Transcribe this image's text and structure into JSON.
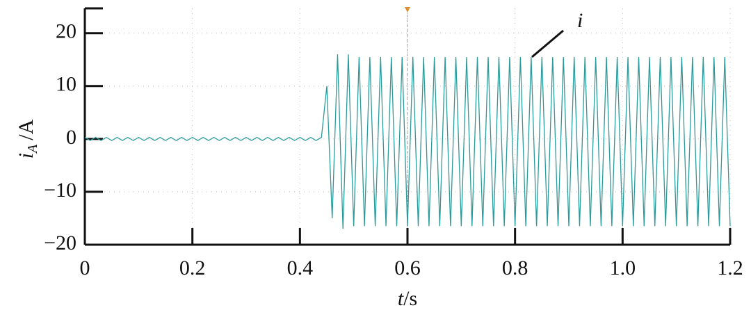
{
  "chart_data": {
    "type": "line",
    "ylabel_var": "i",
    "ylabel_sub": "A",
    "ylabel_unit": "/A",
    "xlabel_var": "t",
    "xlabel_unit": "/s",
    "annotation": "i",
    "xlim": [
      0,
      1.2
    ],
    "ylim": [
      -20,
      24.7
    ],
    "xticks": [
      0,
      0.2,
      0.4,
      0.6,
      0.8,
      {
        "value": 1,
        "label": "1.0"
      },
      1.2
    ],
    "yticks": [
      {
        "value": -20,
        "label": "−20"
      },
      {
        "value": -10,
        "label": "−10"
      },
      0,
      10,
      20
    ],
    "grid": true,
    "x": [
      0,
      0.01,
      0.02,
      0.03,
      0.04,
      0.05,
      0.06,
      0.07,
      0.08,
      0.09,
      0.1,
      0.11,
      0.12,
      0.13,
      0.14,
      0.15,
      0.16,
      0.17,
      0.18,
      0.19,
      0.2,
      0.21,
      0.22,
      0.23,
      0.24,
      0.25,
      0.26,
      0.27,
      0.28,
      0.29,
      0.3,
      0.31,
      0.32,
      0.33,
      0.34,
      0.35,
      0.36,
      0.37,
      0.38,
      0.39,
      0.4,
      0.41,
      0.42,
      0.43,
      0.44,
      0.45,
      0.46,
      0.47,
      0.48,
      0.49,
      0.5,
      0.51,
      0.52,
      0.53,
      0.54,
      0.55,
      0.56,
      0.57,
      0.58,
      0.59,
      0.6,
      0.61,
      0.62,
      0.63,
      0.64,
      0.65,
      0.66,
      0.67,
      0.68,
      0.69,
      0.7,
      0.71,
      0.72,
      0.73,
      0.74,
      0.75,
      0.76,
      0.77,
      0.78,
      0.79,
      0.8,
      0.81,
      0.82,
      0.83,
      0.84,
      0.85,
      0.86,
      0.87,
      0.88,
      0.89,
      0.9,
      0.91,
      0.92,
      0.93,
      0.94,
      0.95,
      0.96,
      0.97,
      0.98,
      0.99,
      1,
      1.01,
      1.02,
      1.03,
      1.04,
      1.05,
      1.06,
      1.07,
      1.08,
      1.09,
      1.1,
      1.11,
      1.12,
      1.13,
      1.14,
      1.15,
      1.16,
      1.17,
      1.18,
      1.19,
      1.2
    ],
    "series": [
      {
        "color": "#2a9a9a",
        "values": [
          0.3,
          -0.3,
          0.3,
          -0.3,
          0.3,
          -0.3,
          0.3,
          -0.3,
          0.3,
          -0.3,
          0.3,
          -0.3,
          0.3,
          -0.3,
          0.3,
          -0.3,
          0.3,
          -0.3,
          0.3,
          -0.3,
          0.3,
          -0.3,
          0.3,
          -0.3,
          0.3,
          -0.3,
          0.3,
          -0.3,
          0.3,
          -0.3,
          0.3,
          -0.3,
          0.3,
          -0.3,
          0.3,
          -0.3,
          0.3,
          -0.3,
          0.3,
          -0.3,
          0.3,
          -0.3,
          0.3,
          -0.3,
          0.3,
          10,
          -15,
          16,
          -17,
          16,
          -16.5,
          15.5,
          -16.5,
          15.5,
          -16.5,
          15.5,
          -16.5,
          15.5,
          -16.5,
          15.5,
          -16.5,
          15.5,
          -16.5,
          15.5,
          -16.5,
          15.5,
          -16.5,
          15.5,
          -16.5,
          15.5,
          -16.5,
          15.5,
          -16.5,
          15.5,
          -16.5,
          15.5,
          -16.5,
          15.5,
          -16.5,
          15.5,
          -16.5,
          15.5,
          -16.5,
          15.5,
          -16.5,
          15.5,
          -16.5,
          15.5,
          -16.5,
          15.5,
          -16.5,
          15.5,
          -16.5,
          15.5,
          -16.5,
          15.5,
          -16.5,
          15.5,
          -16.5,
          15.5,
          -16.5,
          15.5,
          -16.5,
          15.5,
          -16.5,
          15.5,
          -16.5,
          15.5,
          -16.5,
          15.5,
          -16.5,
          15.5,
          -16.5,
          15.5,
          -16.5,
          15.5,
          -16.5,
          15.5,
          -16.5,
          15.5,
          -16.5
        ]
      }
    ]
  }
}
